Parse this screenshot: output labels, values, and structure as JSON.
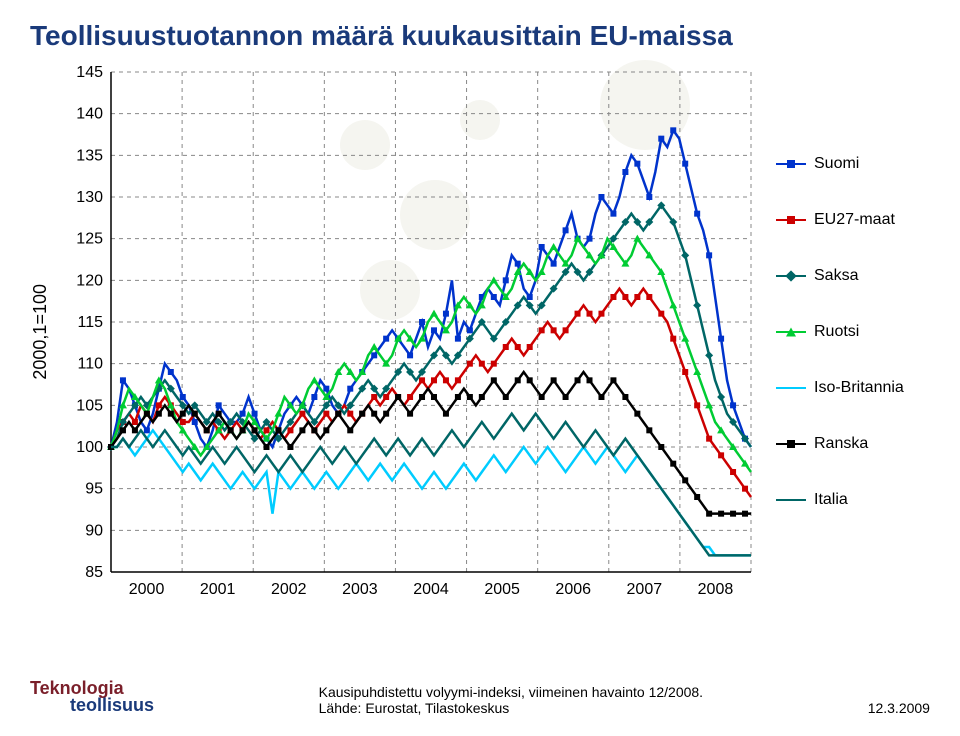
{
  "title": "Teollisuustuotannon määrä kuukausittain EU-maissa",
  "ylabel": "2000,1=100",
  "ylim": [
    85,
    145
  ],
  "ytick_step": 5,
  "yticks": [
    85,
    90,
    95,
    100,
    105,
    110,
    115,
    120,
    125,
    130,
    135,
    140,
    145
  ],
  "xlim": [
    2000,
    2009
  ],
  "xticks": [
    2000,
    2001,
    2002,
    2003,
    2004,
    2005,
    2006,
    2007,
    2008
  ],
  "grid_color": "#888888",
  "grid_dash": "4,4",
  "background_color": "#ffffff",
  "line_width": 2.5,
  "series": [
    {
      "name": "Suomi",
      "color": "#0033cc",
      "marker": "square",
      "values": [
        100,
        103,
        108,
        107,
        105,
        103,
        102,
        104,
        107,
        110,
        109,
        108,
        106,
        105,
        103,
        101,
        100,
        102,
        105,
        104,
        103,
        103,
        104,
        106,
        104,
        102,
        101,
        100,
        102,
        104,
        105,
        106,
        105,
        104,
        106,
        108,
        107,
        105,
        104,
        105,
        107,
        108,
        109,
        110,
        111,
        112,
        113,
        114,
        113,
        112,
        111,
        113,
        115,
        112,
        114,
        113,
        116,
        120,
        113,
        115,
        114,
        116,
        118,
        119,
        118,
        117,
        120,
        123,
        122,
        119,
        118,
        120,
        124,
        123,
        122,
        124,
        126,
        128,
        125,
        124,
        125,
        128,
        130,
        129,
        128,
        130,
        133,
        135,
        134,
        132,
        130,
        133,
        137,
        136,
        138,
        137,
        134,
        131,
        128,
        126,
        123,
        118,
        113,
        108,
        105,
        103,
        101,
        100
      ]
    },
    {
      "name": "EU27-maat",
      "color": "#cc0000",
      "marker": "square",
      "values": [
        100,
        102,
        103,
        104,
        103,
        105,
        104,
        103,
        105,
        106,
        105,
        104,
        103,
        103,
        104,
        103,
        102,
        103,
        102,
        101,
        102,
        103,
        102,
        103,
        102,
        101,
        102,
        103,
        102,
        101,
        102,
        103,
        104,
        103,
        102,
        103,
        104,
        103,
        104,
        105,
        104,
        103,
        104,
        105,
        106,
        105,
        106,
        107,
        106,
        105,
        106,
        107,
        108,
        107,
        108,
        109,
        108,
        107,
        108,
        109,
        110,
        111,
        110,
        109,
        110,
        111,
        112,
        113,
        112,
        111,
        112,
        113,
        114,
        115,
        114,
        113,
        114,
        115,
        116,
        117,
        116,
        115,
        116,
        117,
        118,
        119,
        118,
        117,
        118,
        119,
        118,
        117,
        116,
        115,
        113,
        111,
        109,
        107,
        105,
        103,
        101,
        100,
        99,
        98,
        97,
        96,
        95,
        94
      ]
    },
    {
      "name": "Saksa",
      "color": "#006666",
      "marker": "diamond",
      "values": [
        100,
        101,
        103,
        104,
        105,
        106,
        105,
        106,
        107,
        108,
        107,
        106,
        105,
        104,
        105,
        104,
        103,
        104,
        103,
        102,
        103,
        104,
        103,
        102,
        101,
        102,
        103,
        102,
        101,
        102,
        103,
        104,
        105,
        104,
        103,
        104,
        105,
        106,
        105,
        104,
        105,
        106,
        107,
        108,
        107,
        106,
        107,
        108,
        109,
        110,
        109,
        108,
        109,
        110,
        111,
        112,
        111,
        110,
        111,
        112,
        113,
        114,
        115,
        114,
        113,
        114,
        115,
        116,
        117,
        118,
        117,
        116,
        117,
        118,
        119,
        120,
        121,
        122,
        121,
        120,
        121,
        122,
        123,
        124,
        125,
        126,
        127,
        128,
        127,
        126,
        127,
        128,
        129,
        128,
        127,
        125,
        123,
        120,
        117,
        114,
        111,
        108,
        106,
        104,
        103,
        102,
        101,
        100
      ]
    },
    {
      "name": "Ruotsi",
      "color": "#00cc33",
      "marker": "triangle",
      "values": [
        100,
        102,
        105,
        107,
        106,
        105,
        104,
        106,
        108,
        107,
        105,
        103,
        102,
        101,
        100,
        99,
        100,
        101,
        102,
        103,
        102,
        101,
        102,
        104,
        103,
        102,
        101,
        102,
        104,
        106,
        105,
        104,
        105,
        107,
        108,
        107,
        106,
        107,
        109,
        110,
        109,
        108,
        109,
        111,
        112,
        111,
        110,
        111,
        113,
        114,
        113,
        112,
        113,
        115,
        116,
        115,
        114,
        115,
        117,
        118,
        117,
        116,
        117,
        119,
        120,
        119,
        118,
        119,
        121,
        122,
        121,
        120,
        121,
        123,
        124,
        123,
        122,
        123,
        125,
        124,
        123,
        122,
        123,
        125,
        124,
        123,
        122,
        123,
        125,
        124,
        123,
        122,
        121,
        119,
        117,
        115,
        113,
        111,
        109,
        107,
        105,
        103,
        102,
        101,
        100,
        99,
        98,
        97
      ]
    },
    {
      "name": "Iso-Britannia",
      "color": "#00ccff",
      "marker": "none",
      "values": [
        100,
        100,
        101,
        100,
        99,
        100,
        101,
        102,
        101,
        100,
        99,
        98,
        97,
        98,
        97,
        96,
        97,
        98,
        97,
        96,
        95,
        96,
        97,
        96,
        95,
        96,
        97,
        92,
        97,
        96,
        95,
        96,
        97,
        96,
        95,
        96,
        97,
        96,
        95,
        96,
        97,
        98,
        97,
        96,
        97,
        98,
        97,
        96,
        97,
        98,
        97,
        96,
        95,
        96,
        97,
        96,
        95,
        96,
        97,
        98,
        97,
        96,
        97,
        98,
        99,
        98,
        97,
        98,
        99,
        100,
        99,
        98,
        99,
        100,
        99,
        98,
        97,
        98,
        99,
        100,
        99,
        98,
        99,
        100,
        99,
        98,
        97,
        98,
        99,
        98,
        97,
        96,
        95,
        94,
        93,
        92,
        91,
        90,
        89,
        88,
        88,
        87,
        87,
        87,
        87,
        87,
        87,
        87
      ]
    },
    {
      "name": "Ranska",
      "color": "#000000",
      "marker": "square",
      "values": [
        100,
        101,
        102,
        103,
        102,
        103,
        104,
        103,
        104,
        105,
        104,
        103,
        104,
        105,
        104,
        103,
        102,
        103,
        104,
        103,
        102,
        101,
        102,
        103,
        102,
        101,
        100,
        101,
        102,
        101,
        100,
        101,
        102,
        103,
        102,
        101,
        102,
        103,
        104,
        103,
        102,
        103,
        104,
        105,
        104,
        103,
        104,
        105,
        106,
        105,
        104,
        105,
        106,
        107,
        106,
        105,
        104,
        105,
        106,
        107,
        106,
        105,
        106,
        107,
        108,
        107,
        106,
        107,
        108,
        109,
        108,
        107,
        106,
        107,
        108,
        107,
        106,
        107,
        108,
        109,
        108,
        107,
        106,
        107,
        108,
        107,
        106,
        105,
        104,
        103,
        102,
        101,
        100,
        99,
        98,
        97,
        96,
        95,
        94,
        93,
        92,
        92,
        92,
        92,
        92,
        92,
        92,
        92
      ]
    },
    {
      "name": "Italia",
      "color": "#006666",
      "marker": "none",
      "values": [
        100,
        100,
        101,
        100,
        101,
        102,
        101,
        100,
        101,
        102,
        101,
        100,
        99,
        100,
        99,
        98,
        99,
        100,
        99,
        98,
        99,
        100,
        99,
        98,
        97,
        98,
        99,
        98,
        97,
        98,
        99,
        98,
        97,
        98,
        99,
        100,
        99,
        98,
        99,
        100,
        99,
        98,
        99,
        100,
        101,
        100,
        99,
        100,
        101,
        100,
        99,
        100,
        101,
        100,
        99,
        100,
        101,
        102,
        101,
        100,
        101,
        102,
        103,
        102,
        101,
        102,
        103,
        104,
        103,
        102,
        103,
        104,
        103,
        102,
        101,
        102,
        103,
        102,
        101,
        100,
        101,
        102,
        101,
        100,
        99,
        100,
        101,
        100,
        99,
        98,
        97,
        96,
        95,
        94,
        93,
        92,
        91,
        90,
        89,
        88,
        87,
        87,
        87,
        87,
        87,
        87,
        87,
        87
      ]
    }
  ],
  "footer": {
    "logo_line1": "Teknologia",
    "logo_line2": "teollisuus",
    "source_line1": "Kausipuhdistettu volyymi-indeksi, viimeinen havainto 12/2008.",
    "source_line2": "Lähde: Eurostat, Tilastokeskus",
    "date": "12.3.2009"
  },
  "title_fontsize": 28,
  "label_fontsize": 18
}
